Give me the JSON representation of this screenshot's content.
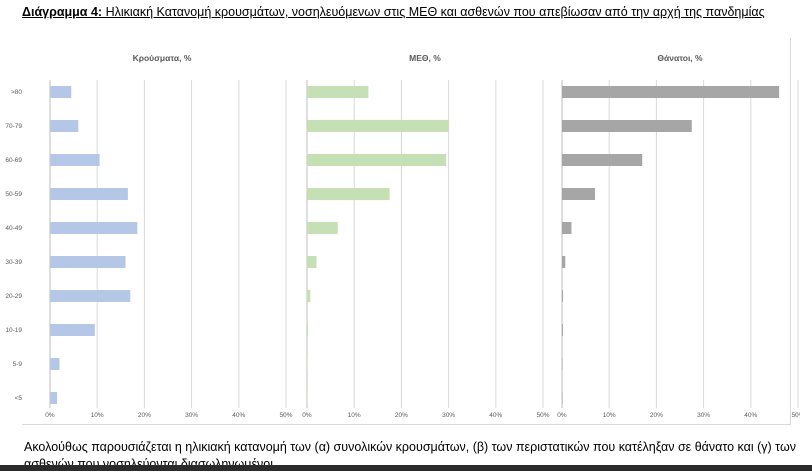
{
  "document": {
    "title_lead": "Διάγραμμα 4:",
    "title_rest": "Ηλικιακή Κατανομή κρουσμάτων, νοσηλευόμενων στις ΜΕΘ και ασθενών που απεβίωσαν από την αρχή της πανδημίας",
    "body_text": "Ακολούθως παρουσιάζεται η ηλικιακή κατανομή των (α) συνολικών κρουσμάτων, (β) των περιστατικών που κατέληξαν σε θάνατο και (γ) των ασθενών που νοσηλεύονται διασωληνωμένοι"
  },
  "chart_data": {
    "type": "bar",
    "orientation": "horizontal",
    "categories": [
      ">80",
      "70-79",
      "60-69",
      "50-59",
      "40-49",
      "30-39",
      "20-29",
      "10-19",
      "5-9",
      "<5"
    ],
    "xlim": [
      0,
      50
    ],
    "x_ticks": [
      "0%",
      "10%",
      "20%",
      "30%",
      "40%",
      "50%"
    ],
    "grid": true,
    "panels": [
      {
        "title": "Κρούσματα, %",
        "color": "#b4c7e7",
        "values": [
          4.5,
          6.0,
          10.5,
          16.5,
          18.5,
          16.0,
          17.0,
          9.5,
          2.0,
          1.5
        ]
      },
      {
        "title": "ΜΕΘ, %",
        "color": "#c5e0b4",
        "values": [
          13.0,
          30.0,
          29.5,
          17.5,
          6.5,
          2.0,
          0.7,
          0.2,
          0,
          0
        ]
      },
      {
        "title": "Θάνατοι, %",
        "color": "#a6a6a6",
        "values": [
          46.0,
          27.5,
          17.0,
          7.0,
          2.0,
          0.7,
          0.2,
          0.1,
          0,
          0
        ]
      }
    ]
  }
}
